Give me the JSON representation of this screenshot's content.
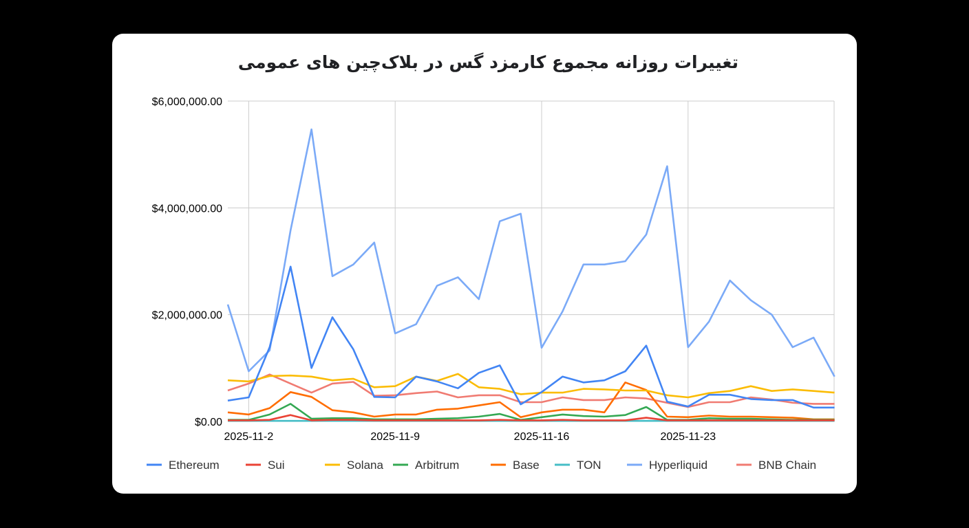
{
  "chart_data": {
    "type": "line",
    "title": "تغییرات روزانه مجموع کارمزد گس در بلاک‌چین های عمومی",
    "xlabel": "",
    "ylabel": "",
    "x": [
      "2025-11-1",
      "2025-11-2",
      "2025-11-3",
      "2025-11-4",
      "2025-11-5",
      "2025-11-6",
      "2025-11-7",
      "2025-11-8",
      "2025-11-9",
      "2025-11-10",
      "2025-11-11",
      "2025-11-12",
      "2025-11-13",
      "2025-11-14",
      "2025-11-15",
      "2025-11-16",
      "2025-11-17",
      "2025-11-18",
      "2025-11-19",
      "2025-11-20",
      "2025-11-21",
      "2025-11-22",
      "2025-11-23",
      "2025-11-24",
      "2025-11-25",
      "2025-11-26",
      "2025-11-27",
      "2025-11-28",
      "2025-11-29",
      "2025-11-30"
    ],
    "x_ticks": [
      "2025-11-2",
      "2025-11-9",
      "2025-11-16",
      "2025-11-23"
    ],
    "y_ticks": [
      "$0.00",
      "$2,000,000.00",
      "$4,000,000.00",
      "$6,000,000.00"
    ],
    "ylim": [
      0,
      6000000
    ],
    "grid": true,
    "legend": "bottom",
    "series": [
      {
        "name": "Ethereum",
        "color": "#4285f4",
        "values": [
          390000,
          450000,
          1390000,
          2900000,
          1000000,
          1950000,
          1350000,
          460000,
          450000,
          840000,
          750000,
          620000,
          910000,
          1050000,
          320000,
          550000,
          840000,
          730000,
          770000,
          940000,
          1420000,
          370000,
          280000,
          500000,
          500000,
          420000,
          400000,
          400000,
          260000,
          260000
        ]
      },
      {
        "name": "Sui",
        "color": "#ea4335",
        "values": [
          20000,
          20000,
          30000,
          120000,
          20000,
          30000,
          30000,
          20000,
          20000,
          20000,
          20000,
          20000,
          20000,
          30000,
          20000,
          20000,
          30000,
          20000,
          20000,
          20000,
          70000,
          20000,
          20000,
          20000,
          20000,
          20000,
          20000,
          20000,
          20000,
          20000
        ]
      },
      {
        "name": "Solana",
        "color": "#fbbc04",
        "values": [
          770000,
          750000,
          850000,
          860000,
          840000,
          770000,
          800000,
          640000,
          660000,
          840000,
          760000,
          890000,
          640000,
          610000,
          510000,
          540000,
          540000,
          610000,
          600000,
          580000,
          580000,
          490000,
          450000,
          530000,
          570000,
          660000,
          570000,
          600000,
          570000,
          540000
        ]
      },
      {
        "name": "Arbitrum",
        "color": "#34a853",
        "values": [
          30000,
          30000,
          130000,
          330000,
          50000,
          60000,
          60000,
          40000,
          40000,
          40000,
          50000,
          60000,
          90000,
          140000,
          30000,
          80000,
          130000,
          100000,
          90000,
          120000,
          270000,
          30000,
          30000,
          60000,
          50000,
          50000,
          40000,
          30000,
          30000,
          30000
        ]
      },
      {
        "name": "Base",
        "color": "#ff6d01",
        "values": [
          170000,
          130000,
          250000,
          550000,
          460000,
          210000,
          170000,
          90000,
          130000,
          130000,
          220000,
          240000,
          300000,
          360000,
          80000,
          170000,
          220000,
          220000,
          170000,
          730000,
          590000,
          90000,
          80000,
          110000,
          90000,
          90000,
          80000,
          70000,
          40000,
          40000
        ]
      },
      {
        "name": "TON",
        "color": "#46bdc6",
        "values": [
          10000,
          10000,
          10000,
          10000,
          10000,
          10000,
          10000,
          10000,
          10000,
          10000,
          10000,
          10000,
          10000,
          10000,
          10000,
          10000,
          10000,
          10000,
          10000,
          10000,
          10000,
          10000,
          10000,
          10000,
          10000,
          10000,
          10000,
          10000,
          10000,
          10000
        ]
      },
      {
        "name": "Hyperliquid",
        "color": "#7baaf7",
        "values": [
          2190000,
          940000,
          1330000,
          3580000,
          5470000,
          2720000,
          2940000,
          3350000,
          1650000,
          1820000,
          2540000,
          2700000,
          2290000,
          3750000,
          3890000,
          1380000,
          2060000,
          2940000,
          2940000,
          3000000,
          3500000,
          4780000,
          1390000,
          1870000,
          2640000,
          2270000,
          2000000,
          1390000,
          1570000,
          840000
        ]
      },
      {
        "name": "BNB Chain",
        "color": "#f07b72",
        "values": [
          580000,
          710000,
          880000,
          710000,
          540000,
          710000,
          740000,
          480000,
          490000,
          530000,
          560000,
          450000,
          490000,
          490000,
          360000,
          360000,
          450000,
          400000,
          400000,
          450000,
          430000,
          350000,
          270000,
          360000,
          360000,
          450000,
          410000,
          350000,
          330000,
          330000
        ]
      }
    ]
  }
}
